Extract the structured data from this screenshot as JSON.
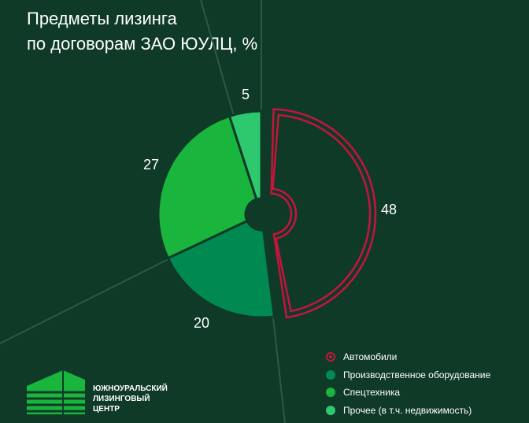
{
  "title": {
    "line1": "Предметы лизинга",
    "line2": "по договорам ЗАО ЮУЛЦ, %"
  },
  "chart_data": {
    "type": "pie",
    "title": "Предметы лизинга по договорам ЗАО ЮУЛЦ, %",
    "categories": [
      "Автомобили",
      "Производственное оборудование",
      "Спецтехника",
      "Прочее (в т.ч. недвижимость)"
    ],
    "values": [
      48,
      20,
      27,
      5
    ],
    "data_labels": [
      "48",
      "20",
      "27",
      "5"
    ],
    "colors": [
      "#c4153c",
      "#008a52",
      "#19b53c",
      "#2ec86e"
    ],
    "legend_placement": "bottom-right",
    "highlighted": "Автомобили"
  },
  "legend": {
    "items": [
      {
        "label": "Автомобили",
        "color": "#c4153c",
        "style": "ring"
      },
      {
        "label": "Производственное оборудование",
        "color": "#008a52",
        "style": "dot"
      },
      {
        "label": "Спецтехника",
        "color": "#19b53c",
        "style": "dot"
      },
      {
        "label": "Прочее (в т.ч. недвижимость)",
        "color": "#2ec86e",
        "style": "dot"
      }
    ]
  },
  "logo": {
    "line1": "ЮЖНОУРАЛЬСКИЙ",
    "line2": "ЛИЗИНГОВЫЙ",
    "line3": "ЦЕНТР"
  }
}
